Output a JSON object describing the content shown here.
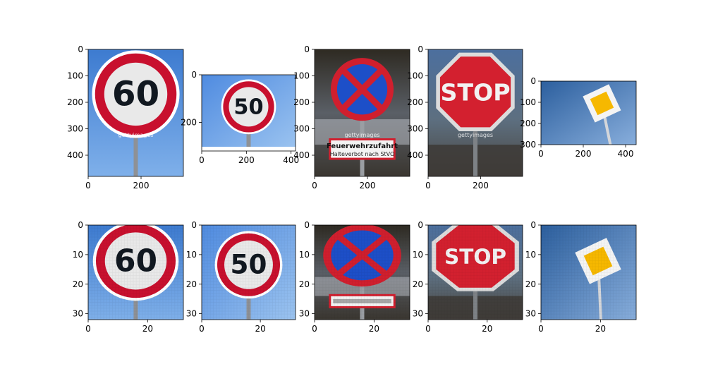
{
  "chart_data": {
    "type": "image-grid",
    "rows": 2,
    "cols": 5,
    "panels": [
      {
        "id": "p1",
        "row": 0,
        "col": 0,
        "sign": "speed-limit-60",
        "sign_text": "60",
        "watermark": "gettyimages",
        "extent": [
          360,
          480
        ],
        "xticks": [
          0,
          200
        ],
        "yticks": [
          0,
          100,
          200,
          300,
          400
        ]
      },
      {
        "id": "p2",
        "row": 0,
        "col": 1,
        "sign": "speed-limit-50",
        "sign_text": "50",
        "watermark": "",
        "extent": [
          420,
          320
        ],
        "xticks": [
          0,
          200,
          400
        ],
        "yticks": [
          0,
          200
        ]
      },
      {
        "id": "p3",
        "row": 0,
        "col": 2,
        "sign": "no-stopping",
        "sign_text": "",
        "plate_line1": "Feuerwehrzufahrt",
        "plate_line2": "Halteverbot nach StVO",
        "watermark": "gettyimages",
        "extent": [
          360,
          480
        ],
        "xticks": [
          0,
          200
        ],
        "yticks": [
          0,
          100,
          200,
          300,
          400
        ]
      },
      {
        "id": "p4",
        "row": 0,
        "col": 3,
        "sign": "stop",
        "sign_text": "STOP",
        "watermark": "gettyimages",
        "extent": [
          360,
          480
        ],
        "xticks": [
          0,
          200
        ],
        "yticks": [
          0,
          100,
          200,
          300,
          400
        ]
      },
      {
        "id": "p5",
        "row": 0,
        "col": 4,
        "sign": "priority-road",
        "sign_text": "",
        "watermark": "",
        "extent": [
          450,
          300
        ],
        "xticks": [
          0,
          200,
          400
        ],
        "yticks": [
          0,
          100,
          200,
          300
        ]
      },
      {
        "id": "p6",
        "row": 1,
        "col": 0,
        "sign": "speed-limit-60",
        "sign_text": "60",
        "watermark": "",
        "extent": [
          32,
          32
        ],
        "xticks": [
          0,
          20
        ],
        "yticks": [
          0,
          10,
          20,
          30
        ]
      },
      {
        "id": "p7",
        "row": 1,
        "col": 1,
        "sign": "speed-limit-50",
        "sign_text": "50",
        "watermark": "",
        "extent": [
          32,
          32
        ],
        "xticks": [
          0,
          20
        ],
        "yticks": [
          0,
          10,
          20,
          30
        ]
      },
      {
        "id": "p8",
        "row": 1,
        "col": 2,
        "sign": "no-stopping",
        "sign_text": "",
        "watermark": "",
        "extent": [
          32,
          32
        ],
        "xticks": [
          0,
          20
        ],
        "yticks": [
          0,
          10,
          20,
          30
        ]
      },
      {
        "id": "p9",
        "row": 1,
        "col": 3,
        "sign": "stop",
        "sign_text": "STOP",
        "watermark": "",
        "extent": [
          32,
          32
        ],
        "xticks": [
          0,
          20
        ],
        "yticks": [
          0,
          10,
          20,
          30
        ]
      },
      {
        "id": "p10",
        "row": 1,
        "col": 4,
        "sign": "priority-road",
        "sign_text": "",
        "watermark": "",
        "extent": [
          32,
          32
        ],
        "xticks": [
          0,
          20
        ],
        "yticks": [
          0,
          10,
          20,
          30
        ]
      }
    ]
  }
}
